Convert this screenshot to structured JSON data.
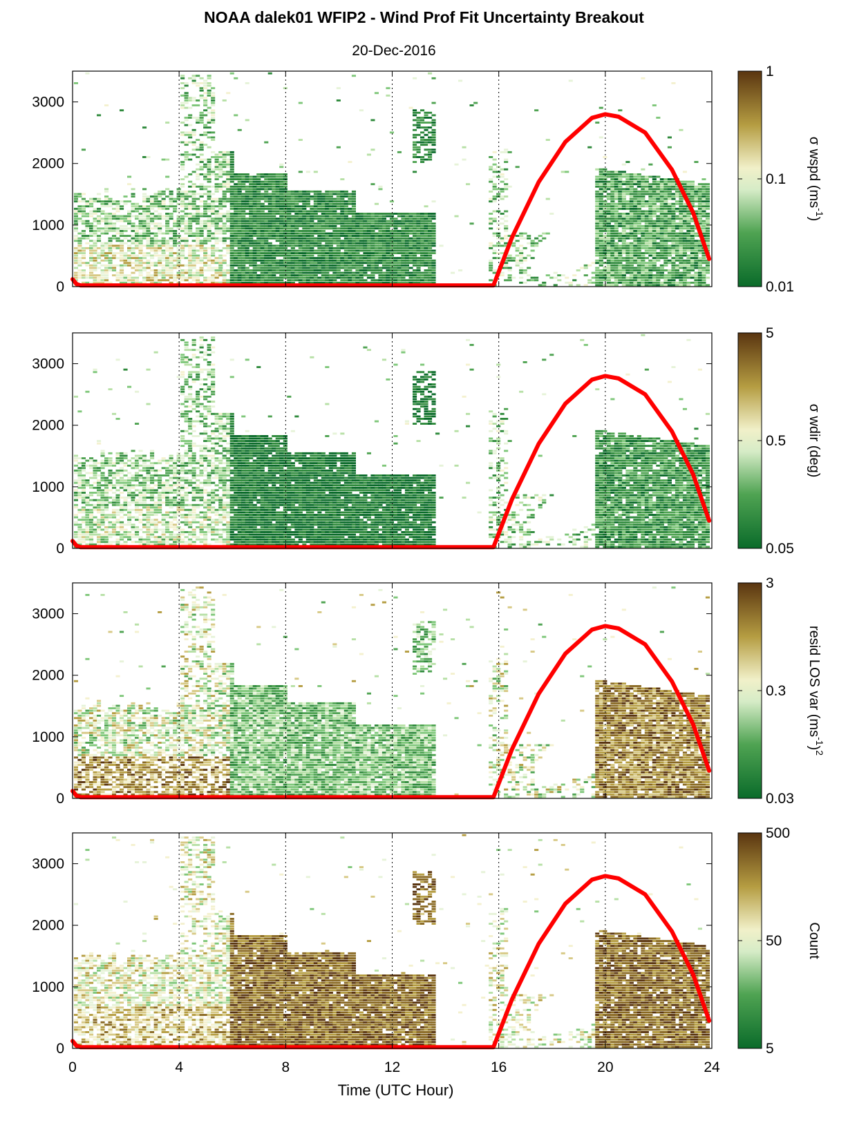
{
  "title": "NOAA dalek01 WFIP2 - Wind Prof Fit Uncertainty Breakout",
  "subtitle": "20-Dec-2016",
  "xlabel": "Time (UTC Hour)",
  "colors": {
    "low": "#0a6b2a",
    "mid_low": "#7fc77a",
    "mid": "#f2f7e0",
    "mid_high": "#b8a34a",
    "high": "#5a3510",
    "overlay_curve": "#ff0000",
    "grid": "#000000"
  },
  "chart_data": [
    {
      "type": "heatmap",
      "panel": 1,
      "colorbar_label": "σ wspd (ms",
      "colorbar_label_sup": "-1",
      "colorbar_label_tail": ")",
      "colorbar_scale": "log",
      "colorbar_ticks": [
        "0.01",
        "0.1",
        "1"
      ],
      "xlim": [
        0,
        24
      ],
      "ylim": [
        0,
        3500
      ],
      "yticks": [
        "0",
        "1000",
        "2000",
        "3000"
      ]
    },
    {
      "type": "heatmap",
      "panel": 2,
      "colorbar_label": "σ wdir (deg)",
      "colorbar_label_sup": "",
      "colorbar_label_tail": "",
      "colorbar_scale": "log",
      "colorbar_ticks": [
        "0.05",
        "0.5",
        "5"
      ],
      "xlim": [
        0,
        24
      ],
      "ylim": [
        0,
        3500
      ],
      "yticks": [
        "0",
        "1000",
        "2000",
        "3000"
      ]
    },
    {
      "type": "heatmap",
      "panel": 3,
      "colorbar_label": "resid LOS var (ms",
      "colorbar_label_sup": "-1",
      "colorbar_label_tail": ")",
      "colorbar_label_sup2": "2",
      "colorbar_scale": "log",
      "colorbar_ticks": [
        "0.03",
        "0.3",
        "3"
      ],
      "xlim": [
        0,
        24
      ],
      "ylim": [
        0,
        3500
      ],
      "yticks": [
        "0",
        "1000",
        "2000",
        "3000"
      ]
    },
    {
      "type": "heatmap",
      "panel": 4,
      "colorbar_label": "Count",
      "colorbar_label_sup": "",
      "colorbar_label_tail": "",
      "colorbar_scale": "log",
      "colorbar_ticks": [
        "5",
        "50",
        "500"
      ],
      "xlim": [
        0,
        24
      ],
      "ylim": [
        0,
        3500
      ],
      "yticks": [
        "0",
        "1000",
        "2000",
        "3000"
      ],
      "xticks": [
        "0",
        "4",
        "8",
        "12",
        "16",
        "20",
        "24"
      ]
    }
  ],
  "overlay_curve": {
    "description_ref": "solar-elevation-style curve",
    "points": [
      [
        0,
        120
      ],
      [
        0.15,
        40
      ],
      [
        0.3,
        20
      ],
      [
        15.8,
        20
      ],
      [
        16.5,
        800
      ],
      [
        17.5,
        1700
      ],
      [
        18.5,
        2350
      ],
      [
        19.5,
        2740
      ],
      [
        20,
        2800
      ],
      [
        20.5,
        2760
      ],
      [
        21.5,
        2500
      ],
      [
        22.5,
        1900
      ],
      [
        23.3,
        1200
      ],
      [
        23.9,
        450
      ]
    ]
  },
  "vertical_guides_x": [
    4,
    8,
    12,
    16,
    20
  ]
}
